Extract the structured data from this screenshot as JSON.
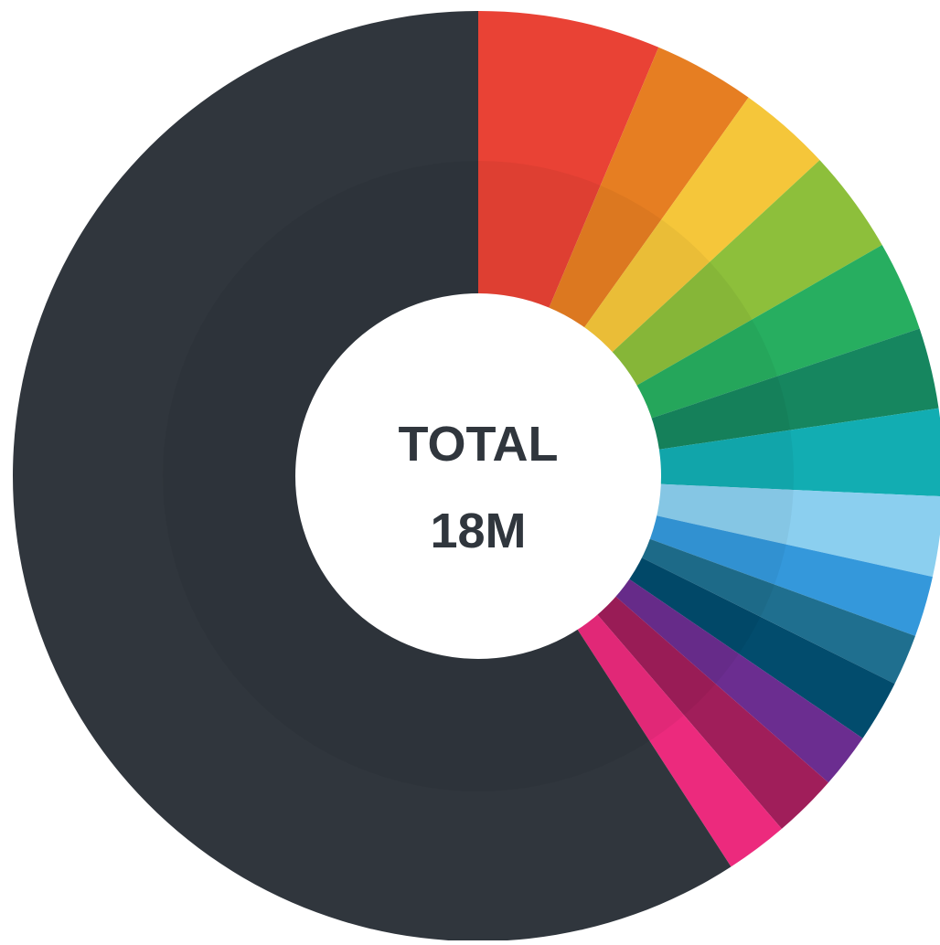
{
  "chart_data": {
    "type": "pie",
    "donut": true,
    "center_label": {
      "title": "TOTAL",
      "value": "18M"
    },
    "start_angle_deg": 0,
    "direction": "clockwise",
    "slices": [
      {
        "angle_deg": 22.8,
        "color": "#e94235"
      },
      {
        "angle_deg": 12.7,
        "color": "#e67e22"
      },
      {
        "angle_deg": 11.7,
        "color": "#f5c63a"
      },
      {
        "angle_deg": 13.0,
        "color": "#8dbf3b"
      },
      {
        "angle_deg": 11.3,
        "color": "#27ae60"
      },
      {
        "angle_deg": 10.1,
        "color": "#16865f"
      },
      {
        "angle_deg": 10.9,
        "color": "#12adb2"
      },
      {
        "angle_deg": 10.0,
        "color": "#8bcfef"
      },
      {
        "angle_deg": 7.6,
        "color": "#3498db"
      },
      {
        "angle_deg": 6.4,
        "color": "#1f6f8f"
      },
      {
        "angle_deg": 7.8,
        "color": "#024c6d"
      },
      {
        "angle_deg": 6.9,
        "color": "#6b2d90"
      },
      {
        "angle_deg": 8.1,
        "color": "#a01e5a"
      },
      {
        "angle_deg": 7.8,
        "color": "#ec2a7d"
      },
      {
        "angle_deg": 212.9,
        "color": "#30363d"
      }
    ],
    "colors": {
      "center_fill": "#ffffff",
      "center_text": "#30363d"
    }
  }
}
